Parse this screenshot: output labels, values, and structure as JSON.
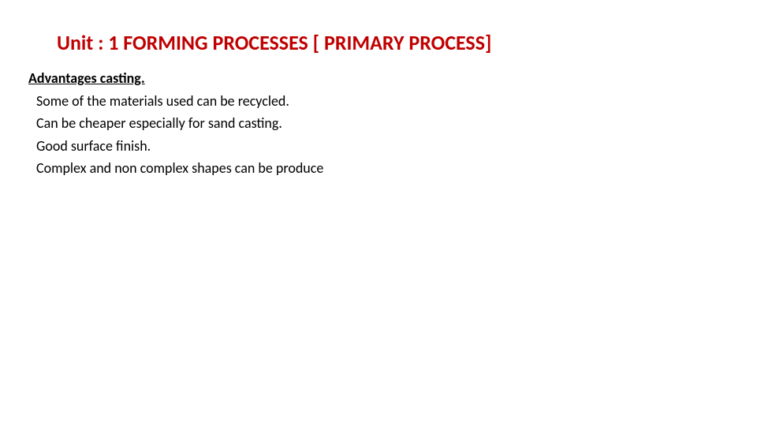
{
  "slide": {
    "title": "Unit : 1 FORMING  PROCESSES [ PRIMARY PROCESS]",
    "title_color": "#c00000",
    "subheading": "Advantages   casting.",
    "lines": [
      "Some of the  materials used can be recycled.",
      "Can be cheaper especially for sand casting.",
      "Good surface finish.",
      "Complex and non  complex shapes can be produce"
    ],
    "body_color": "#000000",
    "background_color": "#ffffff",
    "title_fontsize": 26,
    "body_fontsize": 18
  }
}
